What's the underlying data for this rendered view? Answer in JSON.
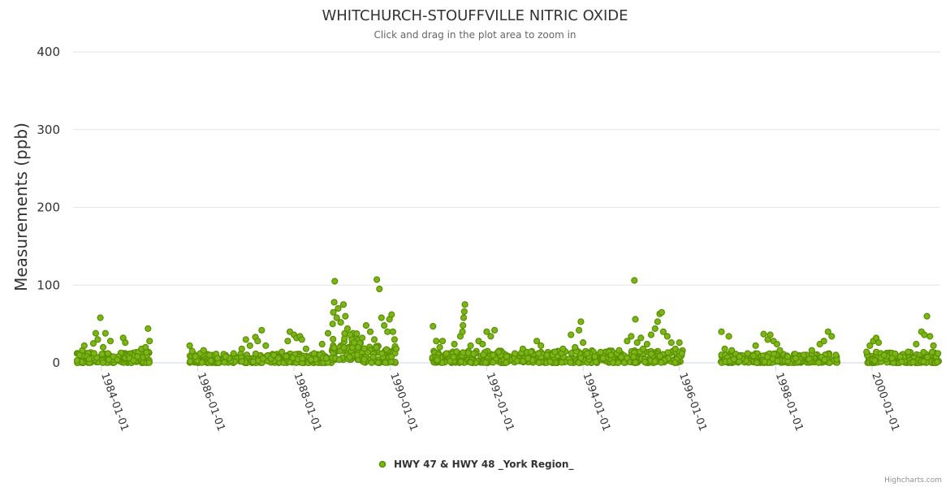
{
  "chart_data": {
    "type": "scatter",
    "title": "WHITCHURCH-STOUFFVILLE NITRIC OXIDE",
    "subtitle": "Click and drag in the plot area to zoom in",
    "ylabel": "Measurements (ppb)",
    "xlabel": "",
    "ylim": [
      0,
      400
    ],
    "yticks": [
      "0",
      "100",
      "200",
      "300",
      "400"
    ],
    "xlim": [
      "1983-06-01",
      "2001-06-01"
    ],
    "xticks": [
      "1984-01-01",
      "1986-01-01",
      "1988-01-01",
      "1990-01-01",
      "1992-01-01",
      "1994-01-01",
      "1996-01-01",
      "1998-01-01",
      "2000-01-01"
    ],
    "grid": "horizontal",
    "legend_position": "bottom-center",
    "series": [
      {
        "name": "HWY 47 & HWY 48 _York Region_",
        "color": "#7cb518",
        "outline": "#5a8f00",
        "points": [
          [
            "1983-07-01",
            3
          ],
          [
            "1983-07-20",
            10
          ],
          [
            "1983-08-10",
            16
          ],
          [
            "1983-08-25",
            22
          ],
          [
            "1983-09-15",
            8
          ],
          [
            "1983-10-01",
            5
          ],
          [
            "1983-11-01",
            25
          ],
          [
            "1983-11-20",
            38
          ],
          [
            "1983-12-05",
            30
          ],
          [
            "1983-12-25",
            58
          ],
          [
            "1984-01-15",
            20
          ],
          [
            "1984-02-01",
            38
          ],
          [
            "1984-02-20",
            12
          ],
          [
            "1984-03-10",
            28
          ],
          [
            "1984-04-01",
            8
          ],
          [
            "1984-05-01",
            4
          ],
          [
            "1984-06-15",
            32
          ],
          [
            "1984-07-01",
            26
          ],
          [
            "1984-08-01",
            6
          ],
          [
            "1984-09-01",
            3
          ],
          [
            "1984-10-01",
            8
          ],
          [
            "1984-11-01",
            18
          ],
          [
            "1984-12-01",
            20
          ],
          [
            "1984-12-20",
            44
          ],
          [
            "1985-01-01",
            28
          ],
          [
            "1985-11-01",
            22
          ],
          [
            "1985-11-20",
            15
          ],
          [
            "1985-12-15",
            8
          ],
          [
            "1986-01-20",
            12
          ],
          [
            "1986-02-15",
            16
          ],
          [
            "1986-04-01",
            10
          ],
          [
            "1986-06-01",
            6
          ],
          [
            "1986-08-01",
            8
          ],
          [
            "1986-10-01",
            12
          ],
          [
            "1986-12-01",
            18
          ],
          [
            "1987-01-01",
            30
          ],
          [
            "1987-02-01",
            22
          ],
          [
            "1987-03-15",
            33
          ],
          [
            "1987-04-01",
            28
          ],
          [
            "1987-05-01",
            42
          ],
          [
            "1987-06-01",
            22
          ],
          [
            "1987-08-01",
            10
          ],
          [
            "1987-10-01",
            14
          ],
          [
            "1987-11-15",
            28
          ],
          [
            "1987-12-01",
            40
          ],
          [
            "1988-01-01",
            36
          ],
          [
            "1988-01-20",
            32
          ],
          [
            "1988-02-15",
            34
          ],
          [
            "1988-03-01",
            30
          ],
          [
            "1988-04-01",
            18
          ],
          [
            "1988-06-01",
            12
          ],
          [
            "1988-08-01",
            24
          ],
          [
            "1988-09-15",
            38
          ],
          [
            "1988-10-20",
            50
          ],
          [
            "1988-10-25",
            65
          ],
          [
            "1988-11-01",
            78
          ],
          [
            "1988-11-05",
            105
          ],
          [
            "1988-11-20",
            58
          ],
          [
            "1988-12-01",
            70
          ],
          [
            "1988-12-20",
            52
          ],
          [
            "1989-01-10",
            75
          ],
          [
            "1989-01-25",
            60
          ],
          [
            "1989-02-10",
            44
          ],
          [
            "1989-03-01",
            36
          ],
          [
            "1989-04-01",
            26
          ],
          [
            "1989-05-01",
            20
          ],
          [
            "1989-06-01",
            32
          ],
          [
            "1989-07-01",
            48
          ],
          [
            "1989-08-01",
            40
          ],
          [
            "1989-09-01",
            30
          ],
          [
            "1989-09-20",
            107
          ],
          [
            "1989-10-10",
            95
          ],
          [
            "1989-10-25",
            58
          ],
          [
            "1989-11-15",
            48
          ],
          [
            "1989-12-10",
            40
          ],
          [
            "1989-12-25",
            56
          ],
          [
            "1990-01-10",
            62
          ],
          [
            "1990-01-20",
            40
          ],
          [
            "1990-02-01",
            30
          ],
          [
            "1990-02-15",
            18
          ],
          [
            "1990-11-20",
            47
          ],
          [
            "1990-12-15",
            28
          ],
          [
            "1991-01-10",
            20
          ],
          [
            "1991-02-01",
            28
          ],
          [
            "1991-03-01",
            12
          ],
          [
            "1991-05-01",
            24
          ],
          [
            "1991-06-15",
            34
          ],
          [
            "1991-07-01",
            40
          ],
          [
            "1991-07-05",
            48
          ],
          [
            "1991-07-10",
            58
          ],
          [
            "1991-07-15",
            66
          ],
          [
            "1991-07-20",
            75
          ],
          [
            "1991-09-01",
            22
          ],
          [
            "1991-11-01",
            28
          ],
          [
            "1991-12-01",
            24
          ],
          [
            "1992-01-01",
            40
          ],
          [
            "1992-02-01",
            34
          ],
          [
            "1992-03-01",
            42
          ],
          [
            "1992-04-01",
            14
          ],
          [
            "1992-06-01",
            8
          ],
          [
            "1992-08-01",
            12
          ],
          [
            "1992-10-01",
            18
          ],
          [
            "1992-12-01",
            14
          ],
          [
            "1993-01-15",
            28
          ],
          [
            "1993-02-15",
            22
          ],
          [
            "1993-04-01",
            10
          ],
          [
            "1993-06-01",
            14
          ],
          [
            "1993-08-01",
            18
          ],
          [
            "1993-10-01",
            36
          ],
          [
            "1993-11-01",
            20
          ],
          [
            "1993-12-01",
            42
          ],
          [
            "1993-12-15",
            53
          ],
          [
            "1994-01-01",
            26
          ],
          [
            "1994-02-01",
            12
          ],
          [
            "1994-04-01",
            8
          ],
          [
            "1994-06-01",
            6
          ],
          [
            "1994-08-01",
            10
          ],
          [
            "1994-10-01",
            16
          ],
          [
            "1994-12-01",
            28
          ],
          [
            "1995-01-01",
            34
          ],
          [
            "1995-01-25",
            106
          ],
          [
            "1995-02-01",
            56
          ],
          [
            "1995-02-15",
            26
          ],
          [
            "1995-03-15",
            32
          ],
          [
            "1995-04-01",
            18
          ],
          [
            "1995-05-01",
            24
          ],
          [
            "1995-06-01",
            36
          ],
          [
            "1995-07-01",
            44
          ],
          [
            "1995-07-20",
            53
          ],
          [
            "1995-08-05",
            63
          ],
          [
            "1995-08-20",
            65
          ],
          [
            "1995-09-01",
            40
          ],
          [
            "1995-10-01",
            34
          ],
          [
            "1995-11-01",
            26
          ],
          [
            "1995-12-01",
            18
          ],
          [
            "1996-01-01",
            26
          ],
          [
            "1996-01-20",
            12
          ],
          [
            "1996-11-15",
            40
          ],
          [
            "1996-12-10",
            18
          ],
          [
            "1997-01-10",
            34
          ],
          [
            "1997-02-01",
            16
          ],
          [
            "1997-04-01",
            8
          ],
          [
            "1997-06-01",
            12
          ],
          [
            "1997-08-01",
            22
          ],
          [
            "1997-10-01",
            37
          ],
          [
            "1997-11-01",
            30
          ],
          [
            "1997-11-20",
            36
          ],
          [
            "1997-12-15",
            28
          ],
          [
            "1998-01-10",
            24
          ],
          [
            "1998-02-01",
            16
          ],
          [
            "1998-04-01",
            8
          ],
          [
            "1998-06-01",
            6
          ],
          [
            "1998-08-01",
            10
          ],
          [
            "1998-10-01",
            16
          ],
          [
            "1998-12-01",
            24
          ],
          [
            "1999-01-01",
            28
          ],
          [
            "1999-02-01",
            40
          ],
          [
            "1999-03-01",
            34
          ],
          [
            "1999-04-01",
            10
          ],
          [
            "1999-11-20",
            14
          ],
          [
            "1999-12-15",
            22
          ],
          [
            "2000-01-10",
            28
          ],
          [
            "2000-02-01",
            32
          ],
          [
            "2000-02-20",
            26
          ],
          [
            "2000-04-01",
            10
          ],
          [
            "2000-06-01",
            6
          ],
          [
            "2000-08-01",
            8
          ],
          [
            "2000-10-01",
            14
          ],
          [
            "2000-12-01",
            24
          ],
          [
            "2001-01-10",
            40
          ],
          [
            "2001-02-01",
            36
          ],
          [
            "2001-02-20",
            60
          ],
          [
            "2001-03-15",
            34
          ],
          [
            "2001-04-10",
            22
          ],
          [
            "2001-05-01",
            8
          ],
          [
            "2001-05-15",
            12
          ]
        ],
        "bands": [
          {
            "start": "1983-07-01",
            "end": "1985-01-01",
            "low": 0,
            "high": 14
          },
          {
            "start": "1985-11-01",
            "end": "1988-10-15",
            "low": 0,
            "high": 12
          },
          {
            "start": "1988-10-15",
            "end": "1989-06-01",
            "low": 4,
            "high": 40
          },
          {
            "start": "1989-06-01",
            "end": "1990-02-20",
            "low": 0,
            "high": 22
          },
          {
            "start": "1990-11-15",
            "end": "1996-01-25",
            "low": 0,
            "high": 16
          },
          {
            "start": "1996-11-10",
            "end": "1999-04-15",
            "low": 0,
            "high": 12
          },
          {
            "start": "1999-11-15",
            "end": "2001-05-20",
            "low": 0,
            "high": 14
          }
        ]
      }
    ]
  },
  "credits": "Highcharts.com"
}
